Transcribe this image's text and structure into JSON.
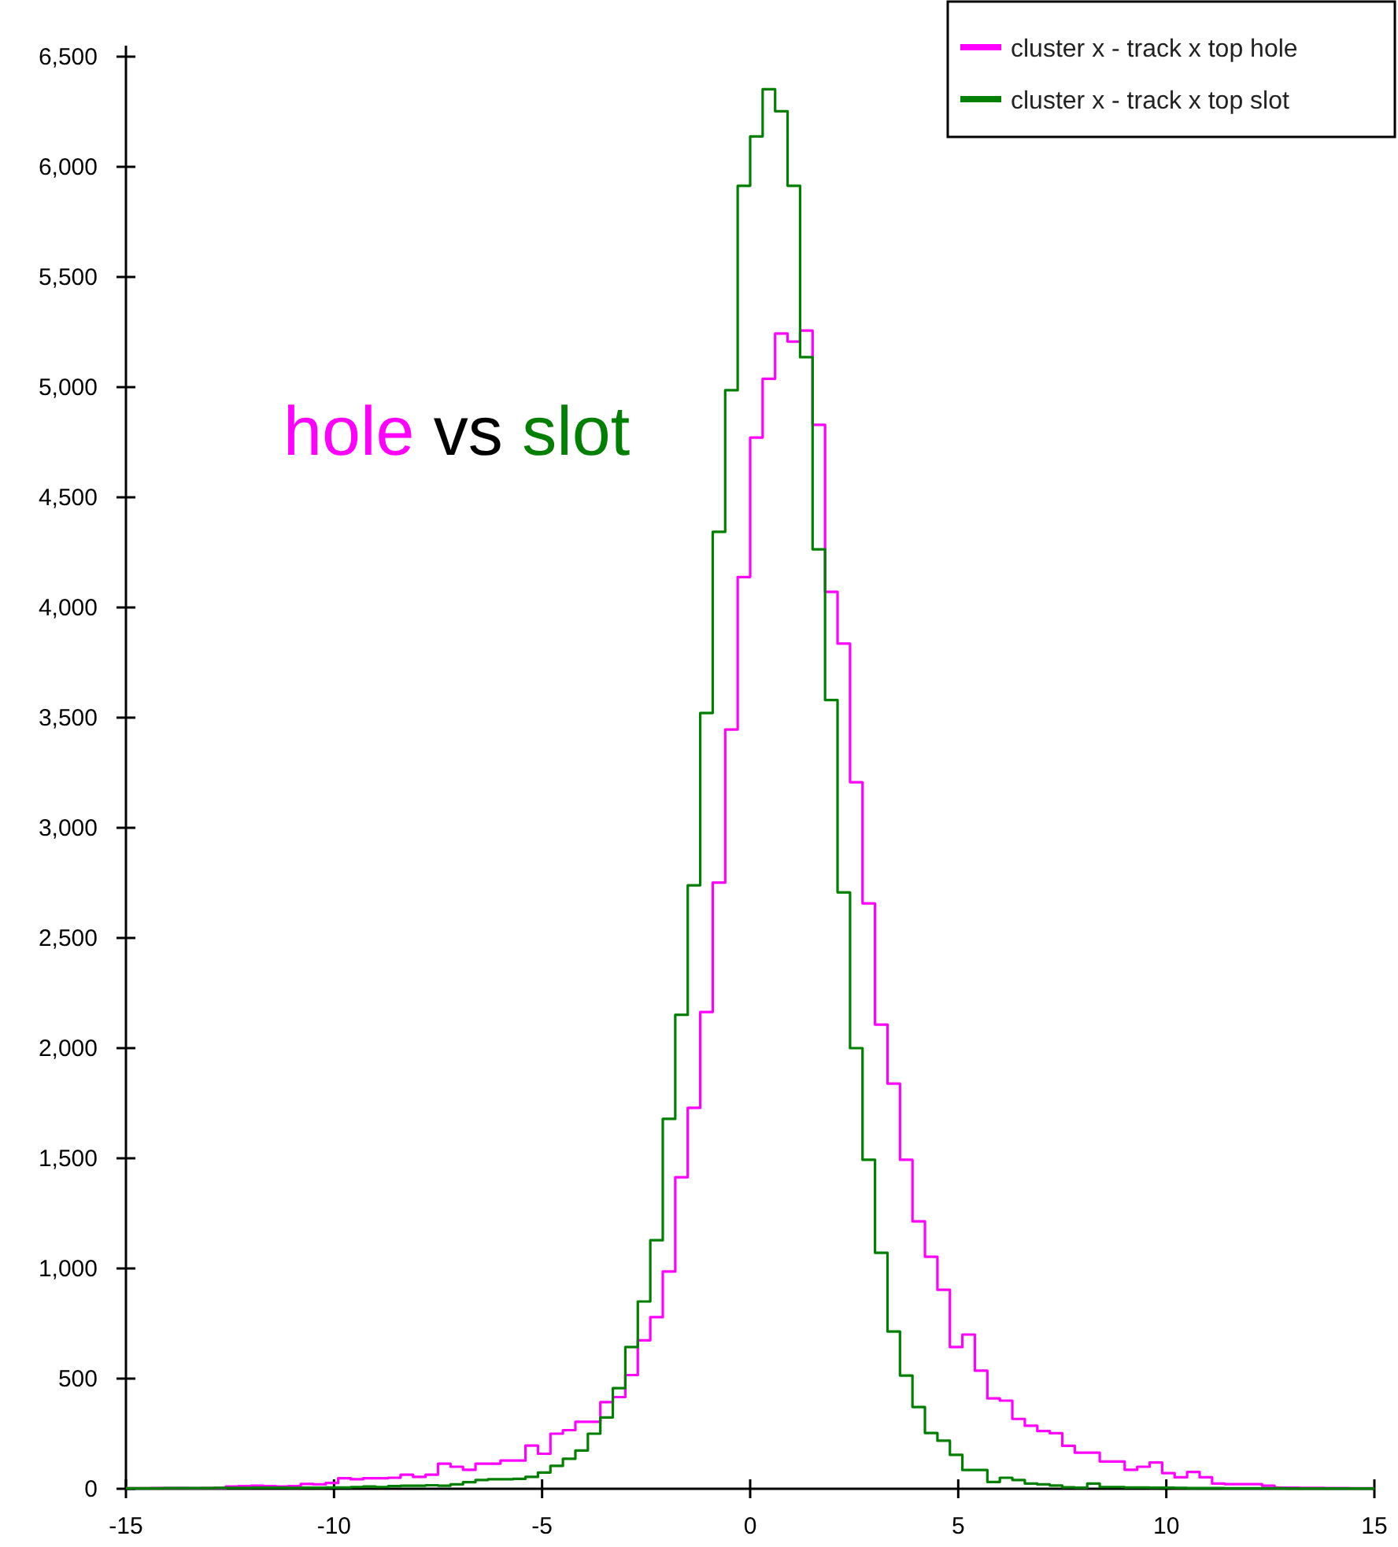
{
  "chart_data": {
    "type": "histogram",
    "bins": [
      -15,
      -14.7,
      -14.4,
      -14.1,
      -13.8,
      -13.5,
      -13.2,
      -12.9,
      -12.6,
      -12.3,
      -12,
      -11.7,
      -11.4,
      -11.1,
      -10.8,
      -10.5,
      -10.2,
      -9.9,
      -9.6,
      -9.3,
      -9,
      -8.7,
      -8.4,
      -8.1,
      -7.8,
      -7.5,
      -7.2,
      -6.9,
      -6.6,
      -6.3,
      -6,
      -5.7,
      -5.4,
      -5.1,
      -4.8,
      -4.5,
      -4.2,
      -3.9,
      -3.6,
      -3.3,
      -3,
      -2.7,
      -2.4,
      -2.1,
      -1.8,
      -1.5,
      -1.2,
      -0.9,
      -0.6,
      -0.3,
      0,
      0.3,
      0.6,
      0.9,
      1.2,
      1.5,
      1.8,
      2.1,
      2.4,
      2.7,
      3,
      3.3,
      3.6,
      3.9,
      4.2,
      4.5,
      4.8,
      5.1,
      5.4,
      5.7,
      6,
      6.3,
      6.6,
      6.9,
      7.2,
      7.5,
      7.8,
      8.1,
      8.4,
      8.7,
      9,
      9.3,
      9.6,
      9.9,
      10.2,
      10.5,
      10.8,
      11.1,
      11.4,
      11.7,
      12,
      12.3,
      12.6,
      12.9,
      13.2,
      13.5,
      13.8,
      14.1,
      14.4,
      14.7,
      15
    ],
    "series": [
      {
        "name": "cluster x - track x top hole",
        "color": "#ff00ff",
        "values": [
          2,
          2,
          3,
          3,
          3,
          2,
          3,
          3,
          10,
          12,
          14,
          12,
          10,
          12,
          22,
          20,
          26,
          48,
          43,
          48,
          48,
          50,
          64,
          54,
          64,
          114,
          100,
          86,
          114,
          114,
          128,
          128,
          196,
          159,
          250,
          266,
          304,
          304,
          393,
          416,
          516,
          674,
          779,
          986,
          1414,
          1729,
          2164,
          2751,
          3446,
          4138,
          4771,
          5038,
          5243,
          5207,
          5257,
          4829,
          4071,
          3836,
          3207,
          2657,
          2107,
          1839,
          1493,
          1214,
          1053,
          903,
          643,
          700,
          536,
          410,
          400,
          317,
          286,
          262,
          252,
          195,
          164,
          164,
          124,
          124,
          86,
          100,
          119,
          71,
          52,
          76,
          52,
          24,
          21,
          21,
          21,
          14,
          5,
          5,
          4,
          4,
          3,
          3,
          2,
          2
        ]
      },
      {
        "name": "cluster x - track x top slot",
        "color": "#007f00",
        "values": [
          2,
          2,
          2,
          3,
          3,
          3,
          3,
          4,
          4,
          4,
          5,
          5,
          5,
          4,
          5,
          5,
          6,
          6,
          8,
          10,
          8,
          12,
          14,
          14,
          16,
          14,
          20,
          30,
          40,
          43,
          43,
          45,
          54,
          74,
          104,
          136,
          174,
          250,
          324,
          457,
          643,
          850,
          1128,
          1679,
          2151,
          2739,
          3521,
          4343,
          4986,
          5914,
          6138,
          6352,
          6252,
          5914,
          5136,
          4264,
          3580,
          2707,
          2000,
          1493,
          1071,
          714,
          514,
          371,
          253,
          218,
          154,
          85,
          85,
          31,
          50,
          40,
          24,
          20,
          15,
          7,
          5,
          24,
          8,
          8,
          6,
          6,
          5,
          5,
          4,
          3,
          3,
          3,
          2,
          2,
          2,
          2,
          2,
          1,
          1,
          1,
          1,
          1,
          1,
          1
        ]
      }
    ],
    "xlim": [
      -15,
      15
    ],
    "xticks": [
      -15,
      -10,
      -5,
      0,
      5,
      10,
      15
    ],
    "ylim": [
      0,
      6550
    ],
    "yticks": [
      0,
      {
        "value": 500,
        "label": "500"
      },
      {
        "value": 1000,
        "label": "1,000"
      },
      {
        "value": 1500,
        "label": "1,500"
      },
      {
        "value": 2000,
        "label": "2,000"
      },
      {
        "value": 2500,
        "label": "2,500"
      },
      {
        "value": 3000,
        "label": "3,000"
      },
      {
        "value": 3500,
        "label": "3,500"
      },
      {
        "value": 4000,
        "label": "4,000"
      },
      {
        "value": 4500,
        "label": "4,500"
      },
      {
        "value": 5000,
        "label": "5,000"
      },
      {
        "value": 5500,
        "label": "5,500"
      },
      {
        "value": 6000,
        "label": "6,000"
      },
      {
        "value": 6500,
        "label": "6,500"
      }
    ],
    "annotations": [
      "hole",
      "vs",
      "slot"
    ],
    "legend": "top right",
    "grid": false
  }
}
